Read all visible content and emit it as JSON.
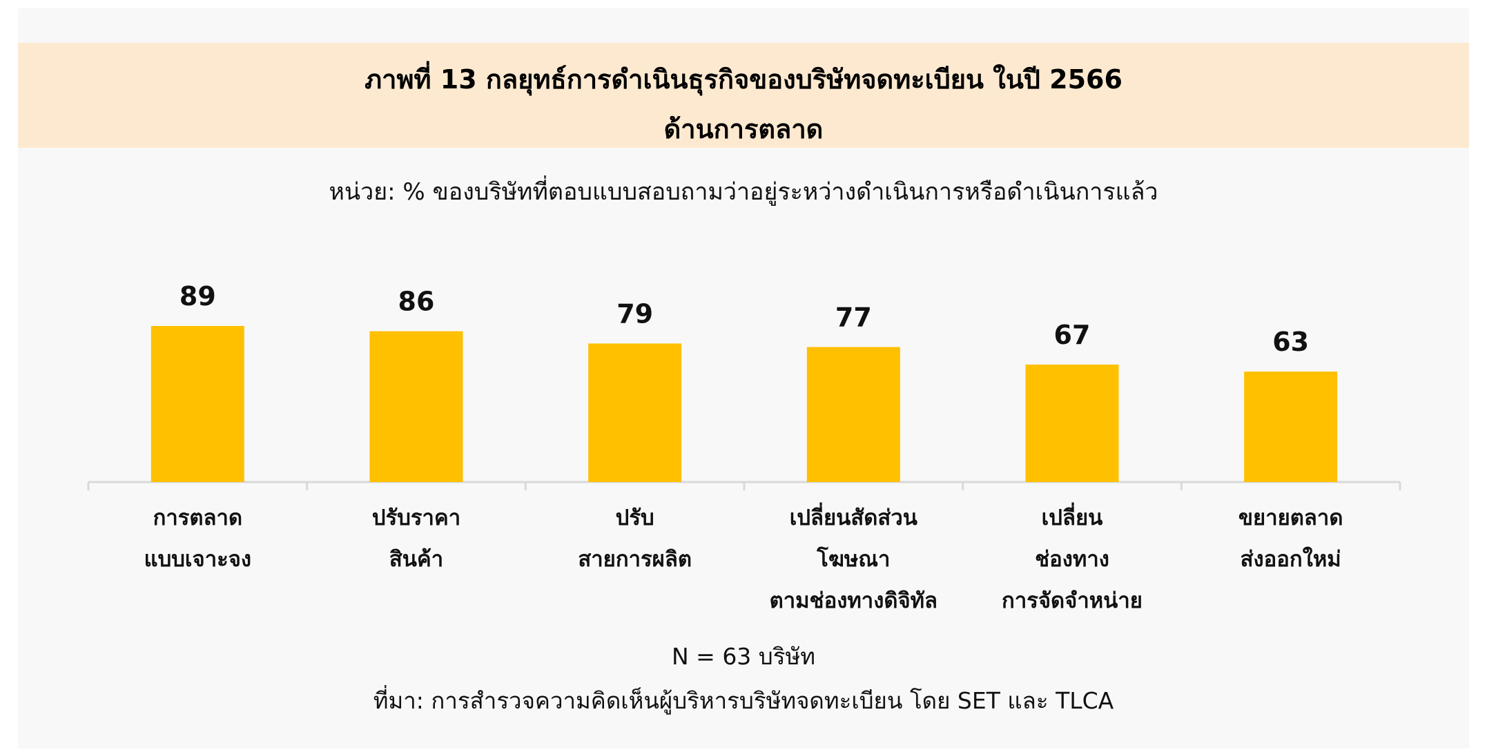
{
  "header": {
    "title_line1": "ภาพที่ 13 กลยุทธ์การดำเนินธุรกิจของบริษัทจดทะเบียน ในปี 2566",
    "title_line2": "ด้านการตลาด",
    "subtitle": "หน่วย: % ของบริษัทที่ตอบแบบสอบถามว่าอยู่ระหว่างดำเนินการหรือดำเนินการแล้ว"
  },
  "footer": {
    "n_note": "N = 63 บริษัท",
    "source": "ที่มา: การสำรวจความคิดเห็นผู้บริหารบริษัทจดทะเบียน โดย SET และ TLCA"
  },
  "colors": {
    "bar": "#ffc000",
    "title_band": "#fde9d0",
    "panel": "#f8f8f8",
    "axis": "#d9d9d9"
  },
  "chart_data": {
    "type": "bar",
    "title": "ภาพที่ 13 กลยุทธ์การดำเนินธุรกิจของบริษัทจดทะเบียน ในปี 2566 ด้านการตลาด",
    "xlabel": "",
    "ylabel": "",
    "ylim": [
      0,
      100
    ],
    "grid": false,
    "legend": "none",
    "categories": [
      [
        "การตลาด",
        "แบบเจาะจง"
      ],
      [
        "ปรับราคา",
        "สินค้า"
      ],
      [
        "ปรับ",
        "สายการผลิต"
      ],
      [
        "เปลี่ยนสัดส่วน",
        "โฆษณา",
        "ตามช่องทางดิจิทัล"
      ],
      [
        "เปลี่ยน",
        "ช่องทาง",
        "การจัดจำหน่าย"
      ],
      [
        "ขยายตลาด",
        "ส่งออกใหม่"
      ]
    ],
    "values": [
      89,
      86,
      79,
      77,
      67,
      63
    ]
  }
}
